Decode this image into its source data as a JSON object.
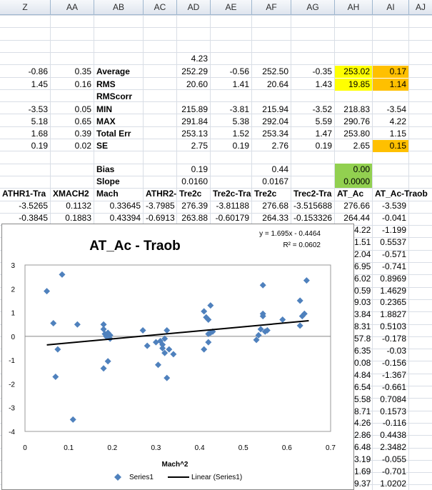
{
  "columns": [
    "Z",
    "AA",
    "AB",
    "AC",
    "AD",
    "AE",
    "AF",
    "AG",
    "AH",
    "AI",
    "AJ"
  ],
  "rows": {
    "r1": {
      "ad": "4.23"
    },
    "average": {
      "z": "-0.86",
      "aa": "0.35",
      "label": "Average",
      "ad": "252.29",
      "ae": "-0.56",
      "af": "252.50",
      "ag": "-0.35",
      "ah": "253.02",
      "ai": "0.17"
    },
    "rms": {
      "z": "1.45",
      "aa": "0.16",
      "label": "RMS",
      "ad": "20.60",
      "ae": "1.41",
      "af": "20.64",
      "ag": "1.43",
      "ah": "19.85",
      "ai": "1.14"
    },
    "rmscorr": {
      "label": "RMScorr"
    },
    "min": {
      "z": "-3.53",
      "aa": "0.05",
      "label": "MIN",
      "ad": "215.89",
      "ae": "-3.81",
      "af": "215.94",
      "ag": "-3.52",
      "ah": "218.83",
      "ai": "-3.54"
    },
    "max": {
      "z": "5.18",
      "aa": "0.65",
      "label": "MAX",
      "ad": "291.84",
      "ae": "5.38",
      "af": "292.04",
      "ag": "5.59",
      "ah": "290.76",
      "ai": "4.22"
    },
    "totalerr": {
      "z": "1.68",
      "aa": "0.39",
      "label": "Total Err",
      "ad": "253.13",
      "ae": "1.52",
      "af": "253.34",
      "ag": "1.47",
      "ah": "253.80",
      "ai": "1.15"
    },
    "se": {
      "z": "0.19",
      "aa": "0.02",
      "label": "SE",
      "ad": "2.75",
      "ae": "0.19",
      "af": "2.76",
      "ag": "0.19",
      "ah": "2.65",
      "ai": "0.15"
    },
    "bias": {
      "label": "Bias",
      "ad": "0.19",
      "af": "0.44",
      "ah": "0.00"
    },
    "slope": {
      "label": "Slope",
      "ad": "0.0160",
      "af": "0.0167",
      "ah": "0.0000"
    },
    "header": {
      "z": "ATHR1-Tra",
      "aa": "XMACH2",
      "ab": "Mach",
      "ac": "ATHR2-T",
      "ad": "Tre2c",
      "ae": "Tre2c-Tra",
      "af": "Tre2c",
      "ag": "Trec2-Tra",
      "ah": "AT_Ac",
      "ai": "AT_Ac-Traob"
    },
    "d1": {
      "z": "-3.5265",
      "aa": "0.1132",
      "ab": "0.33645",
      "ac": "-3.7985",
      "ad": "276.39",
      "ae": "-3.81188",
      "af": "276.68",
      "ag": "-3.515688",
      "ah": "276.66",
      "ai": "-3.539"
    },
    "d2": {
      "z": "-0.3845",
      "aa": "0.1883",
      "ab": "0.43394",
      "ac": "-0.6913",
      "ad": "263.88",
      "ae": "-0.60179",
      "af": "264.33",
      "ag": "-0.153326",
      "ah": "264.44",
      "ai": "-0.041"
    }
  },
  "side_ah": [
    "4.22",
    "1.51",
    "2.04",
    "6.95",
    "6.02",
    "0.59",
    "9.03",
    "3.84",
    "8.31",
    "57.8",
    "6.35",
    "0.08",
    "4.84",
    "6.54",
    "5.58",
    "8.71",
    "4.26",
    "2.86",
    "6.48",
    "3.19",
    "1.69",
    "9.37"
  ],
  "side_ai": [
    "-1.199",
    "0.5537",
    "-0.571",
    "-0.741",
    "0.8969",
    "1.4629",
    "0.2365",
    "1.8827",
    "0.5103",
    "-0.178",
    "-0.03",
    "-0.156",
    "-1.367",
    "-0.661",
    "0.7084",
    "0.1573",
    "-0.116",
    "0.4438",
    "2.3482",
    "-0.055",
    "-0.701",
    "1.0202"
  ],
  "chart_data": {
    "type": "scatter",
    "title": "AT_Ac - Traob",
    "xlabel": "Mach^2",
    "ylabel": "",
    "xlim": [
      0,
      0.7
    ],
    "ylim": [
      -4,
      3
    ],
    "xticks": [
      "0",
      "0.1",
      "0.2",
      "0.3",
      "0.4",
      "0.5",
      "0.6",
      "0.7"
    ],
    "yticks": [
      "3",
      "2",
      "1",
      "0",
      "-1",
      "-2",
      "-3",
      "-4"
    ],
    "equation": "y = 1.695x - 0.4464",
    "r2": "R² = 0.0602",
    "trendline": {
      "slope": 1.695,
      "intercept": -0.4464,
      "x": [
        0.05,
        0.65
      ]
    },
    "legend": {
      "series": "Series1",
      "trend": "Linear (Series1)",
      "position": "bottom"
    },
    "series_color": "#4f81bd",
    "series": [
      {
        "name": "Series1",
        "points": [
          [
            0.05,
            1.9
          ],
          [
            0.065,
            0.55
          ],
          [
            0.07,
            -1.7
          ],
          [
            0.075,
            -0.55
          ],
          [
            0.085,
            2.6
          ],
          [
            0.11,
            -3.5
          ],
          [
            0.12,
            0.5
          ],
          [
            0.18,
            0.5
          ],
          [
            0.18,
            0.3
          ],
          [
            0.183,
            0.1
          ],
          [
            0.186,
            0.0
          ],
          [
            0.19,
            0.15
          ],
          [
            0.195,
            0.05
          ],
          [
            0.18,
            -1.35
          ],
          [
            0.19,
            -1.05
          ],
          [
            0.195,
            -0.1
          ],
          [
            0.27,
            0.25
          ],
          [
            0.28,
            -0.4
          ],
          [
            0.3,
            -0.25
          ],
          [
            0.305,
            -1.2
          ],
          [
            0.31,
            -0.2
          ],
          [
            0.315,
            -0.5
          ],
          [
            0.315,
            -0.35
          ],
          [
            0.32,
            -0.1
          ],
          [
            0.32,
            -0.7
          ],
          [
            0.325,
            0.25
          ],
          [
            0.325,
            -1.75
          ],
          [
            0.33,
            -0.55
          ],
          [
            0.34,
            -0.75
          ],
          [
            0.41,
            1.05
          ],
          [
            0.41,
            -0.55
          ],
          [
            0.415,
            0.8
          ],
          [
            0.42,
            -0.25
          ],
          [
            0.42,
            0.1
          ],
          [
            0.42,
            0.7
          ],
          [
            0.425,
            0.15
          ],
          [
            0.425,
            1.3
          ],
          [
            0.43,
            0.2
          ],
          [
            0.53,
            -0.15
          ],
          [
            0.535,
            0.05
          ],
          [
            0.54,
            0.3
          ],
          [
            0.545,
            0.85
          ],
          [
            0.545,
            0.95
          ],
          [
            0.545,
            2.15
          ],
          [
            0.55,
            0.2
          ],
          [
            0.555,
            0.25
          ],
          [
            0.59,
            0.7
          ],
          [
            0.63,
            1.5
          ],
          [
            0.63,
            0.45
          ],
          [
            0.635,
            0.85
          ],
          [
            0.64,
            0.95
          ],
          [
            0.645,
            2.35
          ]
        ]
      }
    ]
  }
}
